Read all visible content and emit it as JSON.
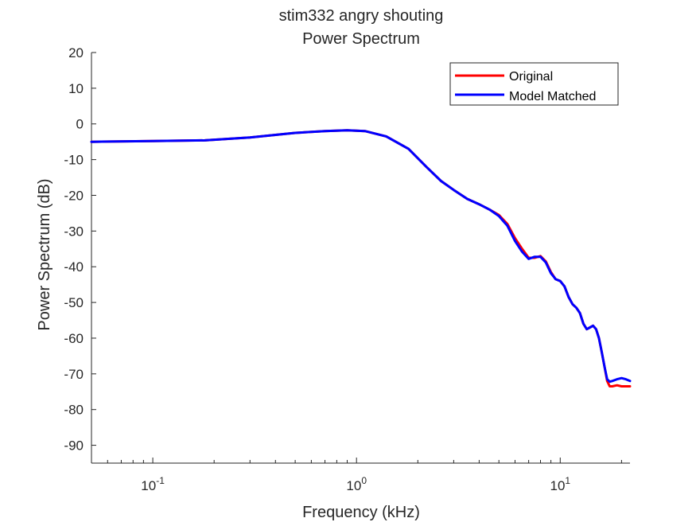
{
  "chart_data": {
    "type": "line",
    "title": "stim332 angry shouting",
    "subtitle": "Power Spectrum",
    "xlabel": "Frequency (kHz)",
    "ylabel": "Power Spectrum (dB)",
    "xscale": "log",
    "xlim": [
      0.05,
      22
    ],
    "ylim": [
      -95,
      20
    ],
    "yticks": [
      20,
      10,
      0,
      -10,
      -20,
      -30,
      -40,
      -50,
      -60,
      -70,
      -80,
      -90
    ],
    "xticks": [
      {
        "value": 0.1,
        "base": "10",
        "exp": "-1"
      },
      {
        "value": 1,
        "base": "10",
        "exp": "0"
      },
      {
        "value": 10,
        "base": "10",
        "exp": "1"
      }
    ],
    "grid": false,
    "legend_position": "top-right",
    "series": [
      {
        "name": "Original",
        "color": "#ff0000",
        "points": [
          [
            0.05,
            -5
          ],
          [
            0.1,
            -4.8
          ],
          [
            0.18,
            -4.6
          ],
          [
            0.3,
            -3.8
          ],
          [
            0.5,
            -2.5
          ],
          [
            0.7,
            -2
          ],
          [
            0.9,
            -1.8
          ],
          [
            1.1,
            -2
          ],
          [
            1.4,
            -3.5
          ],
          [
            1.8,
            -7
          ],
          [
            2.2,
            -12
          ],
          [
            2.6,
            -16
          ],
          [
            3.0,
            -18.5
          ],
          [
            3.5,
            -21
          ],
          [
            4.0,
            -22.5
          ],
          [
            4.5,
            -24
          ],
          [
            5.0,
            -25.5
          ],
          [
            5.5,
            -28
          ],
          [
            6.0,
            -32
          ],
          [
            6.5,
            -35
          ],
          [
            7.0,
            -37.5
          ],
          [
            7.5,
            -37.5
          ],
          [
            8.0,
            -37
          ],
          [
            8.5,
            -38.5
          ],
          [
            9.0,
            -41.5
          ],
          [
            9.5,
            -43.5
          ],
          [
            10.0,
            -44
          ],
          [
            10.5,
            -45.5
          ],
          [
            11.0,
            -48.5
          ],
          [
            11.5,
            -50.5
          ],
          [
            12.0,
            -51.5
          ],
          [
            12.5,
            -53
          ],
          [
            13.0,
            -56
          ],
          [
            13.5,
            -57.5
          ],
          [
            14.0,
            -57
          ],
          [
            14.5,
            -56.5
          ],
          [
            15.0,
            -57.5
          ],
          [
            15.5,
            -60
          ],
          [
            16.0,
            -64
          ],
          [
            16.5,
            -68
          ],
          [
            17.0,
            -72
          ],
          [
            17.5,
            -73.5
          ],
          [
            18.0,
            -73.5
          ],
          [
            19.0,
            -73.2
          ],
          [
            20.0,
            -73.5
          ],
          [
            22.0,
            -73.5
          ]
        ]
      },
      {
        "name": "Model Matched",
        "color": "#0000ff",
        "points": [
          [
            0.05,
            -5
          ],
          [
            0.1,
            -4.8
          ],
          [
            0.18,
            -4.6
          ],
          [
            0.3,
            -3.8
          ],
          [
            0.5,
            -2.5
          ],
          [
            0.7,
            -2
          ],
          [
            0.9,
            -1.8
          ],
          [
            1.1,
            -2
          ],
          [
            1.4,
            -3.5
          ],
          [
            1.8,
            -7
          ],
          [
            2.2,
            -12
          ],
          [
            2.6,
            -16
          ],
          [
            3.0,
            -18.5
          ],
          [
            3.5,
            -21
          ],
          [
            4.0,
            -22.5
          ],
          [
            4.5,
            -24
          ],
          [
            5.0,
            -25.8
          ],
          [
            5.5,
            -28.5
          ],
          [
            6.0,
            -32.8
          ],
          [
            6.5,
            -35.8
          ],
          [
            7.0,
            -37.8
          ],
          [
            7.5,
            -37.2
          ],
          [
            8.0,
            -37.2
          ],
          [
            8.5,
            -38.8
          ],
          [
            9.0,
            -41.8
          ],
          [
            9.5,
            -43.5
          ],
          [
            10.0,
            -44
          ],
          [
            10.5,
            -45.5
          ],
          [
            11.0,
            -48.5
          ],
          [
            11.5,
            -50.5
          ],
          [
            12.0,
            -51.5
          ],
          [
            12.5,
            -53
          ],
          [
            13.0,
            -56
          ],
          [
            13.5,
            -57.5
          ],
          [
            14.0,
            -57
          ],
          [
            14.5,
            -56.5
          ],
          [
            15.0,
            -57.5
          ],
          [
            15.5,
            -60
          ],
          [
            16.0,
            -64
          ],
          [
            16.5,
            -68
          ],
          [
            17.0,
            -71.5
          ],
          [
            17.5,
            -72.2
          ],
          [
            18.0,
            -72
          ],
          [
            19.0,
            -71.5
          ],
          [
            20.0,
            -71.2
          ],
          [
            21.0,
            -71.5
          ],
          [
            22.0,
            -72
          ]
        ]
      }
    ]
  }
}
